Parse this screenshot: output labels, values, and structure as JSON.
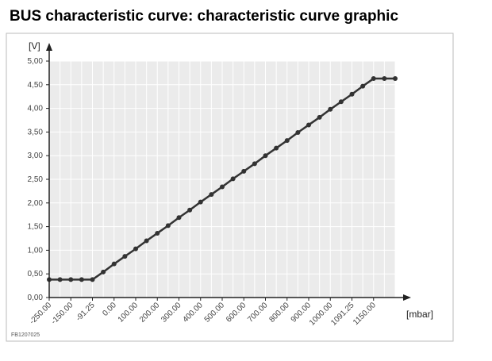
{
  "chart_data": {
    "type": "line",
    "title": "BUS characteristic curve: characteristic curve graphic",
    "y_label": "[V]",
    "x_label": "[mbar]",
    "footnote": "FB1207025",
    "categories": [
      "-250.00",
      null,
      "-150.00",
      null,
      "-91.25",
      null,
      "0.00",
      null,
      "100.00",
      null,
      "200.00",
      null,
      "300.00",
      null,
      "400.00",
      null,
      "500.00",
      null,
      "600.00",
      null,
      "700.00",
      null,
      "800.00",
      null,
      "900.00",
      null,
      "1000.00",
      null,
      "1091.25",
      null,
      "1150.00",
      null,
      null
    ],
    "values": [
      0.38,
      0.38,
      0.38,
      0.38,
      0.38,
      0.54,
      0.71,
      0.87,
      1.03,
      1.2,
      1.36,
      1.52,
      1.69,
      1.85,
      2.02,
      2.18,
      2.34,
      2.51,
      2.67,
      2.83,
      3.0,
      3.16,
      3.32,
      3.49,
      3.65,
      3.81,
      3.98,
      4.14,
      4.3,
      4.47,
      4.63,
      4.63,
      4.63
    ],
    "color": "#333333",
    "ylim": [
      0,
      5
    ],
    "yticks": [
      {
        "value": 0,
        "label": "0,00"
      },
      {
        "value": 0.5,
        "label": "0,50"
      },
      {
        "value": 1,
        "label": "1,00"
      },
      {
        "value": 1.5,
        "label": "1,50"
      },
      {
        "value": 2,
        "label": "2,00"
      },
      {
        "value": 2.5,
        "label": "2,50"
      },
      {
        "value": 3,
        "label": "3,00"
      },
      {
        "value": 3.5,
        "label": "3,50"
      },
      {
        "value": 4,
        "label": "4,00"
      },
      {
        "value": 4.5,
        "label": "4,50"
      },
      {
        "value": 5,
        "label": "5,00"
      }
    ],
    "grid": true
  }
}
